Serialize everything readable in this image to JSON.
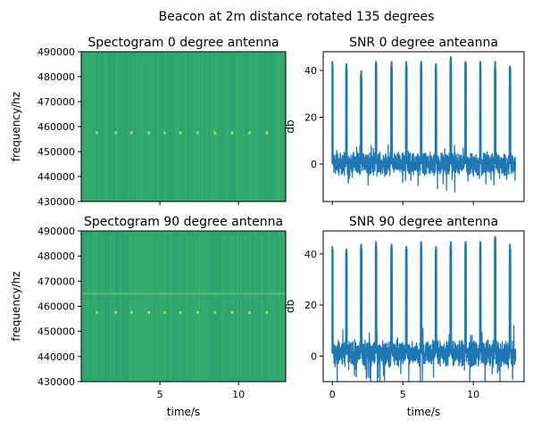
{
  "figure_title": "Beacon at 2m distance rotated 135 degrees",
  "colors": {
    "spectrogram_background": "#2fa76f",
    "spectrogram_pulse": "#b8e236",
    "spectrogram_line": "#55c26b",
    "snr_line": "#1f77b4"
  },
  "chart_data": [
    {
      "type": "heatmap",
      "title": "Spectogram 0 degree antenna",
      "xlabel": "",
      "ylabel": "frequency/hz",
      "xlim": [
        0,
        13
      ],
      "ylim": [
        430000,
        490000
      ],
      "yticks": [
        430000,
        440000,
        450000,
        460000,
        470000,
        480000,
        490000
      ],
      "xticks": [
        5,
        10
      ],
      "show_xtick_labels": false,
      "pulse_frequency": 457500,
      "pulse_times": [
        1.0,
        2.2,
        3.2,
        4.3,
        5.3,
        6.3,
        7.4,
        8.5,
        9.6,
        10.7,
        11.8
      ],
      "constant_line_frequency": null,
      "grid": false
    },
    {
      "type": "line",
      "title": "SNR 0 degree anteanna",
      "xlabel": "",
      "ylabel": "db",
      "xlim": [
        -0.65,
        13.6
      ],
      "ylim": [
        -16,
        48
      ],
      "yticks": [
        0,
        20,
        40
      ],
      "xticks": [
        0,
        5,
        10
      ],
      "show_xtick_labels": false,
      "noise_level": 0,
      "peaks": [
        {
          "t": 0.0,
          "db": 44
        },
        {
          "t": 1.0,
          "db": 43
        },
        {
          "t": 2.05,
          "db": 40
        },
        {
          "t": 3.1,
          "db": 44
        },
        {
          "t": 4.2,
          "db": 44
        },
        {
          "t": 5.25,
          "db": 44
        },
        {
          "t": 6.3,
          "db": 44
        },
        {
          "t": 7.35,
          "db": 43
        },
        {
          "t": 8.4,
          "db": 46
        },
        {
          "t": 9.45,
          "db": 44
        },
        {
          "t": 10.5,
          "db": 44
        },
        {
          "t": 11.55,
          "db": 44
        },
        {
          "t": 12.6,
          "db": 42
        }
      ],
      "grid": false
    },
    {
      "type": "heatmap",
      "title": "Spectogram 90 degree antenna",
      "xlabel": "time/s",
      "ylabel": "frequency/hz",
      "xlim": [
        0,
        13
      ],
      "ylim": [
        430000,
        490000
      ],
      "yticks": [
        430000,
        440000,
        450000,
        460000,
        470000,
        480000,
        490000
      ],
      "xticks": [
        5,
        10
      ],
      "show_xtick_labels": true,
      "pulse_frequency": 457500,
      "pulse_times": [
        1.0,
        2.2,
        3.2,
        4.3,
        5.3,
        6.3,
        7.4,
        8.5,
        9.6,
        10.7,
        11.8
      ],
      "constant_line_frequency": 465000,
      "grid": false
    },
    {
      "type": "line",
      "title": "SNR 90 degree antenna",
      "xlabel": "time/s",
      "ylabel": "db",
      "xlim": [
        -0.65,
        13.6
      ],
      "ylim": [
        -10,
        49
      ],
      "yticks": [
        0,
        20,
        40
      ],
      "xticks": [
        0,
        5,
        10
      ],
      "show_xtick_labels": true,
      "noise_level": 1,
      "peaks": [
        {
          "t": 0.0,
          "db": 43
        },
        {
          "t": 1.0,
          "db": 42
        },
        {
          "t": 2.05,
          "db": 44
        },
        {
          "t": 3.1,
          "db": 45
        },
        {
          "t": 4.2,
          "db": 44
        },
        {
          "t": 5.25,
          "db": 43
        },
        {
          "t": 6.3,
          "db": 45
        },
        {
          "t": 7.35,
          "db": 43
        },
        {
          "t": 8.4,
          "db": 45
        },
        {
          "t": 9.45,
          "db": 45
        },
        {
          "t": 10.5,
          "db": 45
        },
        {
          "t": 11.55,
          "db": 47
        },
        {
          "t": 12.6,
          "db": 44
        }
      ],
      "grid": false
    }
  ]
}
